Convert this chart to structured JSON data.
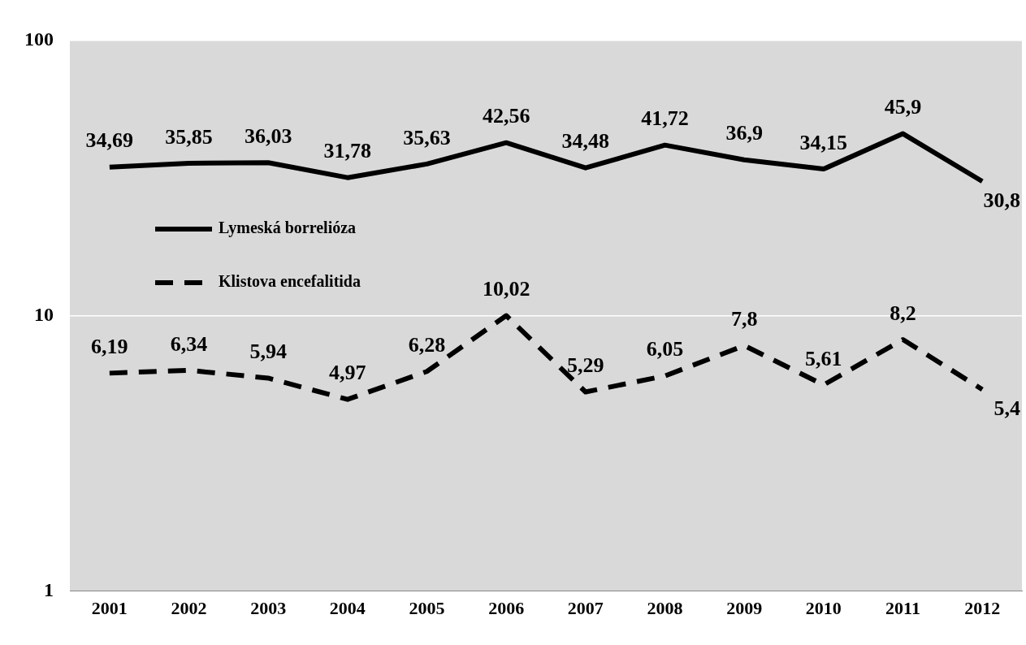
{
  "chart_data": {
    "type": "line",
    "categories": [
      "2001",
      "2002",
      "2003",
      "2004",
      "2005",
      "2006",
      "2007",
      "2008",
      "2009",
      "2010",
      "2011",
      "2012"
    ],
    "series": [
      {
        "name": "Lymeská borrelióza",
        "color": "#000000",
        "line_style": "solid",
        "values": [
          34.69,
          35.85,
          36.03,
          31.78,
          35.63,
          42.56,
          34.48,
          41.72,
          36.9,
          34.15,
          45.9,
          30.8
        ],
        "value_labels": [
          "34,69",
          "35,85",
          "36,03",
          "31,78",
          "35,63",
          "42,56",
          "34,48",
          "41,72",
          "36,9",
          "34,15",
          "45,9",
          "30,8"
        ]
      },
      {
        "name": "Klistova encefalitida",
        "color": "#000000",
        "line_style": "dashed",
        "values": [
          6.19,
          6.34,
          5.94,
          4.97,
          6.28,
          10.02,
          5.29,
          6.05,
          7.8,
          5.61,
          8.2,
          5.4
        ],
        "value_labels": [
          "6,19",
          "6,34",
          "5,94",
          "4,97",
          "6,28",
          "10,02",
          "5,29",
          "6,05",
          "7,8",
          "5,61",
          "8,2",
          "5,4"
        ]
      }
    ],
    "log": "y",
    "ylim": [
      1,
      100
    ],
    "yticks": [
      1,
      10,
      100
    ],
    "grid": "y",
    "legend": "top left",
    "marker": "none"
  }
}
